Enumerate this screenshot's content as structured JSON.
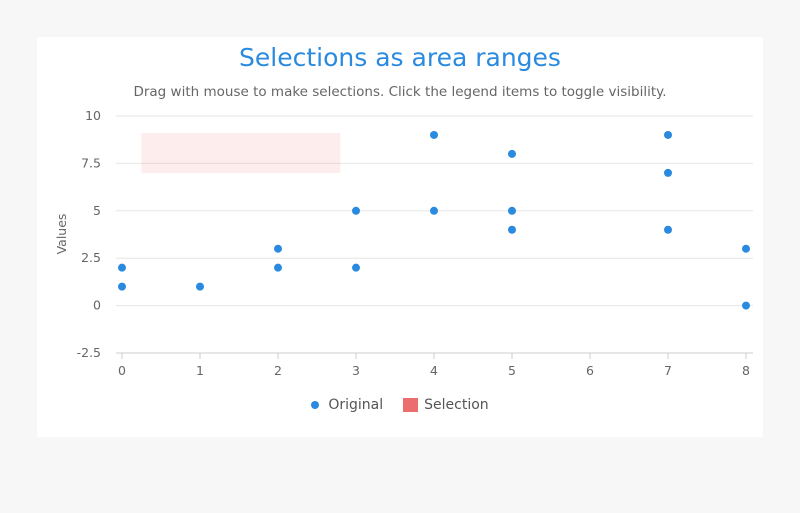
{
  "chart_data": {
    "type": "scatter",
    "title": "Selections as area ranges",
    "subtitle": "Drag with mouse to make selections. Click the legend items to toggle visibility.",
    "xlabel": "",
    "ylabel": "Values",
    "xlim": [
      0,
      8
    ],
    "ylim": [
      -2.5,
      10
    ],
    "x_ticks": [
      0,
      1,
      2,
      3,
      4,
      5,
      6,
      7,
      8
    ],
    "y_ticks": [
      -2.5,
      0,
      2.5,
      5,
      7.5,
      10
    ],
    "y_tick_labels": [
      "-2.5",
      "0",
      "2.5",
      "5",
      "7.5",
      "10"
    ],
    "grid": true,
    "series": [
      {
        "name": "Original",
        "type": "scatter",
        "color": "#2a8ae0",
        "points": [
          [
            0,
            1
          ],
          [
            0,
            2
          ],
          [
            1,
            1
          ],
          [
            2,
            2
          ],
          [
            2,
            3
          ],
          [
            3,
            2
          ],
          [
            3,
            5
          ],
          [
            4,
            5
          ],
          [
            4,
            9
          ],
          [
            5,
            4
          ],
          [
            5,
            5
          ],
          [
            5,
            8
          ],
          [
            7,
            4
          ],
          [
            7,
            7
          ],
          [
            7,
            9
          ],
          [
            8,
            0
          ],
          [
            8,
            3
          ]
        ]
      },
      {
        "name": "Selection",
        "type": "area-range",
        "color": "#ec6d6d",
        "x_range": [
          0.25,
          2.8
        ],
        "y_range": [
          7,
          9.1
        ]
      }
    ],
    "legend": [
      "Original",
      "Selection"
    ],
    "legend_position": "bottom-center"
  }
}
